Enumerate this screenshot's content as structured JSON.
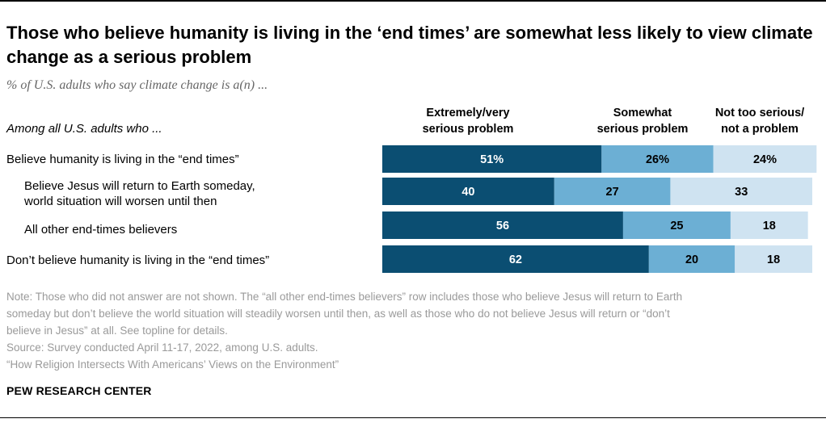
{
  "title": "Those who believe humanity is living in the ‘end times’ are somewhat less likely to view climate change as a serious problem",
  "subtitle": "% of U.S. adults who say climate change is a(n) ...",
  "row_header": "Among all U.S. adults who ...",
  "columns": [
    {
      "line1": "Extremely/very",
      "line2": "serious problem"
    },
    {
      "line1": "Somewhat",
      "line2": "serious problem"
    },
    {
      "line1": "Not too serious/",
      "line2": "not a problem"
    }
  ],
  "rows": [
    {
      "line1": "Believe humanity is living in the “end times”",
      "line2": ""
    },
    {
      "line1": "Believe Jesus will return to Earth someday,",
      "line2": "world situation will worsen until then"
    },
    {
      "line1": "All other end-times believers",
      "line2": ""
    },
    {
      "line1": "Don’t believe humanity is living in the “end times”",
      "line2": ""
    }
  ],
  "chart_data": {
    "type": "bar",
    "orientation": "horizontal-stacked",
    "title": "Those who believe humanity is living in the ‘end times’ are somewhat less likely to view climate change as a serious problem",
    "categories": [
      "Believe humanity is living in the “end times”",
      "Believe Jesus will return to Earth someday, world situation will worsen until then",
      "All other end-times believers",
      "Don’t believe humanity is living in the “end times”"
    ],
    "series": [
      {
        "name": "Extremely/very serious problem",
        "values": [
          51,
          40,
          56,
          62
        ],
        "labels": [
          "51%",
          "40",
          "56",
          "62"
        ],
        "color": "#0b4e72",
        "label_color": "#ffffff"
      },
      {
        "name": "Somewhat serious problem",
        "values": [
          26,
          27,
          25,
          20
        ],
        "labels": [
          "26%",
          "27",
          "25",
          "20"
        ],
        "color": "#6cafd4",
        "label_color": "#000000"
      },
      {
        "name": "Not too serious/not a problem",
        "values": [
          24,
          33,
          18,
          18
        ],
        "labels": [
          "24%",
          "33",
          "18",
          "18"
        ],
        "color": "#cfe3f1",
        "label_color": "#000000"
      }
    ],
    "xlim": [
      0,
      100
    ],
    "unit": "%"
  },
  "notes": [
    "Note: Those who did not answer are not shown. The “all other end-times believers” row includes those who believe Jesus will return to Earth",
    "someday but don’t believe the world situation will steadily worsen until then, as well as those who do not believe Jesus will return or “don’t",
    "believe in Jesus” at all. See topline for details.",
    "Source: Survey conducted April 11-17, 2022, among U.S. adults.",
    "“How Religion Intersects With Americans’ Views on the Environment”"
  ],
  "brand": "PEW RESEARCH CENTER"
}
